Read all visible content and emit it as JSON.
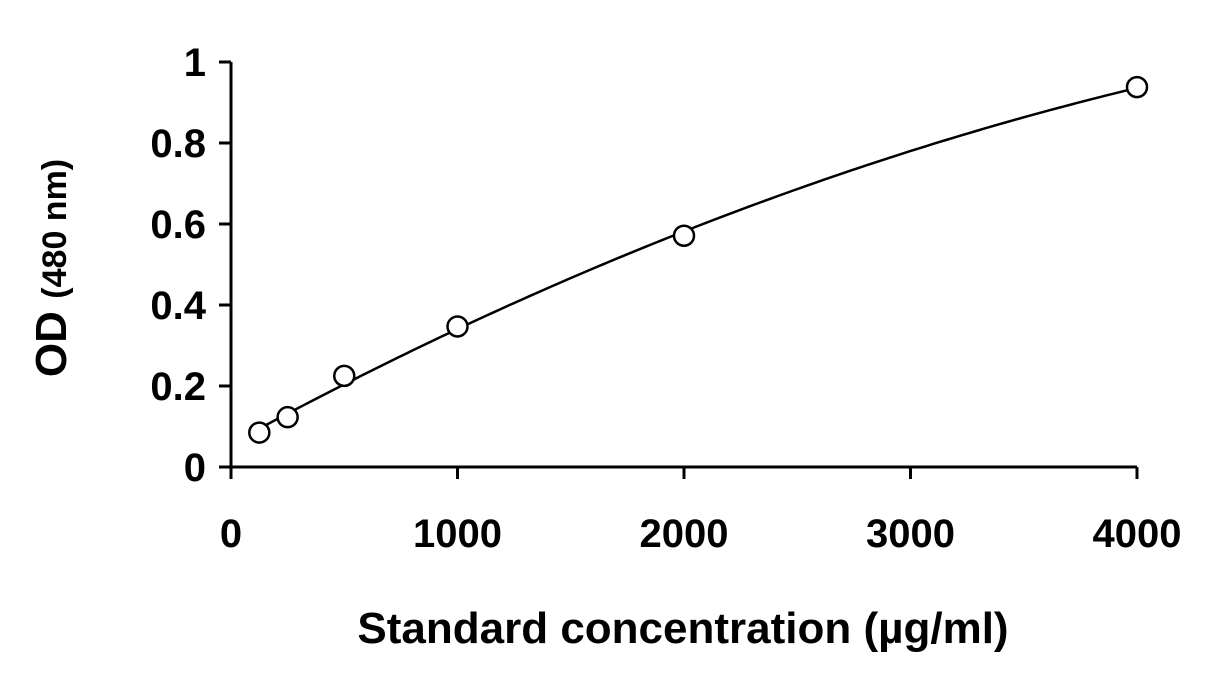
{
  "chart_data": {
    "type": "scatter",
    "title": "",
    "xlabel": "Standard concentration (µg/ml)",
    "ylabel": {
      "main": "OD",
      "unit": "(480 nm)"
    },
    "xlim": [
      0,
      4000
    ],
    "ylim": [
      0,
      1
    ],
    "x_ticks": [
      "0",
      "1000",
      "2000",
      "3000",
      "4000"
    ],
    "y_ticks": [
      "0",
      "0.2",
      "0.4",
      "0.6",
      "0.8",
      "1"
    ],
    "grid": false,
    "legend": "none",
    "series": [
      {
        "points": [
          {
            "x": 125,
            "y": 0.085
          },
          {
            "x": 250,
            "y": 0.123
          },
          {
            "x": 500,
            "y": 0.225
          },
          {
            "x": 1000,
            "y": 0.347
          },
          {
            "x": 2000,
            "y": 0.571
          },
          {
            "x": 4000,
            "y": 0.938
          }
        ],
        "marker": "open-circle",
        "trendline": "polynomial",
        "color": "#000000"
      }
    ]
  }
}
